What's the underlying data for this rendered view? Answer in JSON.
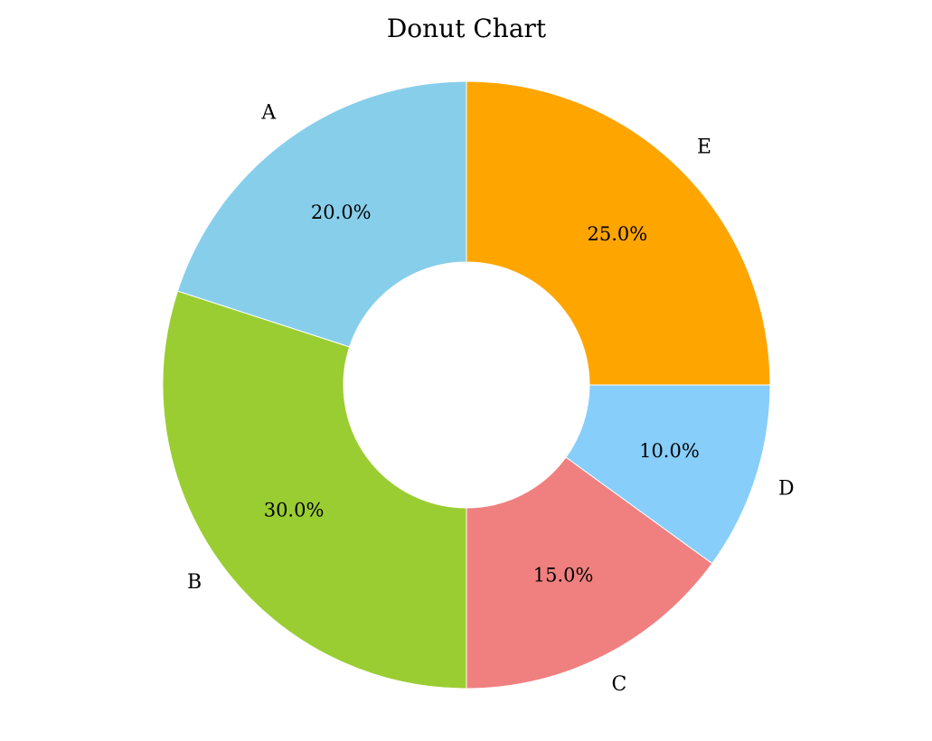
{
  "chart_data": {
    "type": "pie",
    "variant": "donut",
    "title": "Donut Chart",
    "categories": [
      "A",
      "B",
      "C",
      "D",
      "E"
    ],
    "values": [
      20,
      30,
      15,
      10,
      25
    ],
    "percent_labels": [
      "20.0%",
      "30.0%",
      "15.0%",
      "10.0%",
      "25.0%"
    ],
    "colors": [
      "#87ceeb",
      "#9acd32",
      "#f08080",
      "#87cefa",
      "#ffa500"
    ],
    "start_angle_deg": 90,
    "direction": "counterclockwise",
    "legend": "none"
  }
}
